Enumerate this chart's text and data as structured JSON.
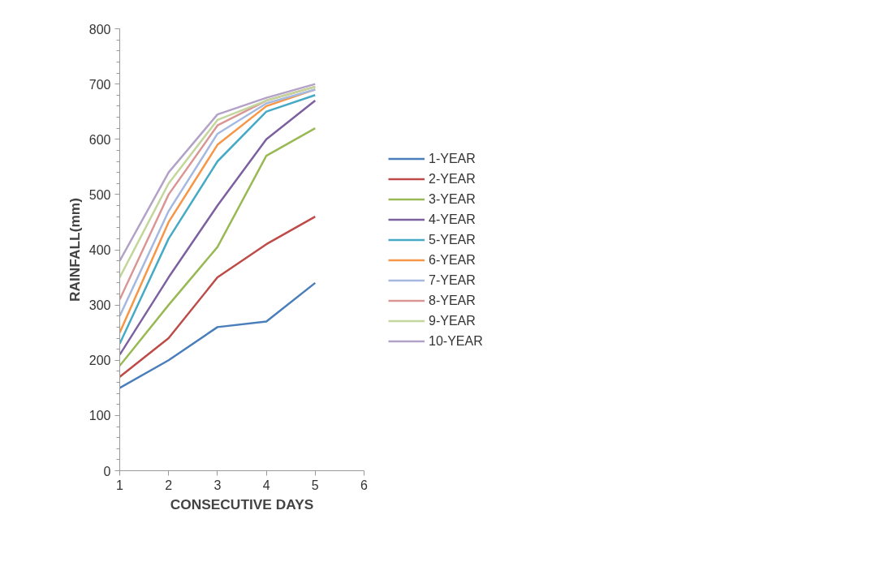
{
  "chart_data": {
    "type": "line",
    "xlabel": "CONSECUTIVE DAYS",
    "ylabel": "RAINFALL(mm)",
    "x": [
      1,
      2,
      3,
      4,
      5
    ],
    "xlim": [
      1,
      6
    ],
    "xticks": [
      1,
      2,
      3,
      4,
      5,
      6
    ],
    "ylim": [
      0,
      800
    ],
    "yticks": [
      0,
      100,
      200,
      300,
      400,
      500,
      600,
      700,
      800
    ],
    "grid": false,
    "legend": "right",
    "marker": "none",
    "line_style": "solid",
    "series": [
      {
        "name": "1-YEAR",
        "color": "#4a7ebb",
        "values": [
          150,
          200,
          260,
          270,
          340
        ]
      },
      {
        "name": "2-YEAR",
        "color": "#be4b48",
        "values": [
          170,
          240,
          350,
          410,
          460
        ]
      },
      {
        "name": "3-YEAR",
        "color": "#98b954",
        "values": [
          190,
          300,
          405,
          570,
          620
        ]
      },
      {
        "name": "4-YEAR",
        "color": "#7d60a0",
        "values": [
          210,
          350,
          480,
          600,
          670
        ]
      },
      {
        "name": "5-YEAR",
        "color": "#46aac5",
        "values": [
          230,
          420,
          560,
          650,
          680
        ]
      },
      {
        "name": "6-YEAR",
        "color": "#f79646",
        "values": [
          250,
          450,
          590,
          660,
          690
        ]
      },
      {
        "name": "7-YEAR",
        "color": "#a5b9e0",
        "values": [
          280,
          470,
          610,
          665,
          690
        ]
      },
      {
        "name": "8-YEAR",
        "color": "#d99694",
        "values": [
          310,
          500,
          625,
          670,
          695
        ]
      },
      {
        "name": "9-YEAR",
        "color": "#c3d69b",
        "values": [
          350,
          520,
          635,
          670,
          695
        ]
      },
      {
        "name": "10-YEAR",
        "color": "#b3a2c7",
        "values": [
          380,
          540,
          645,
          675,
          700
        ]
      }
    ]
  }
}
